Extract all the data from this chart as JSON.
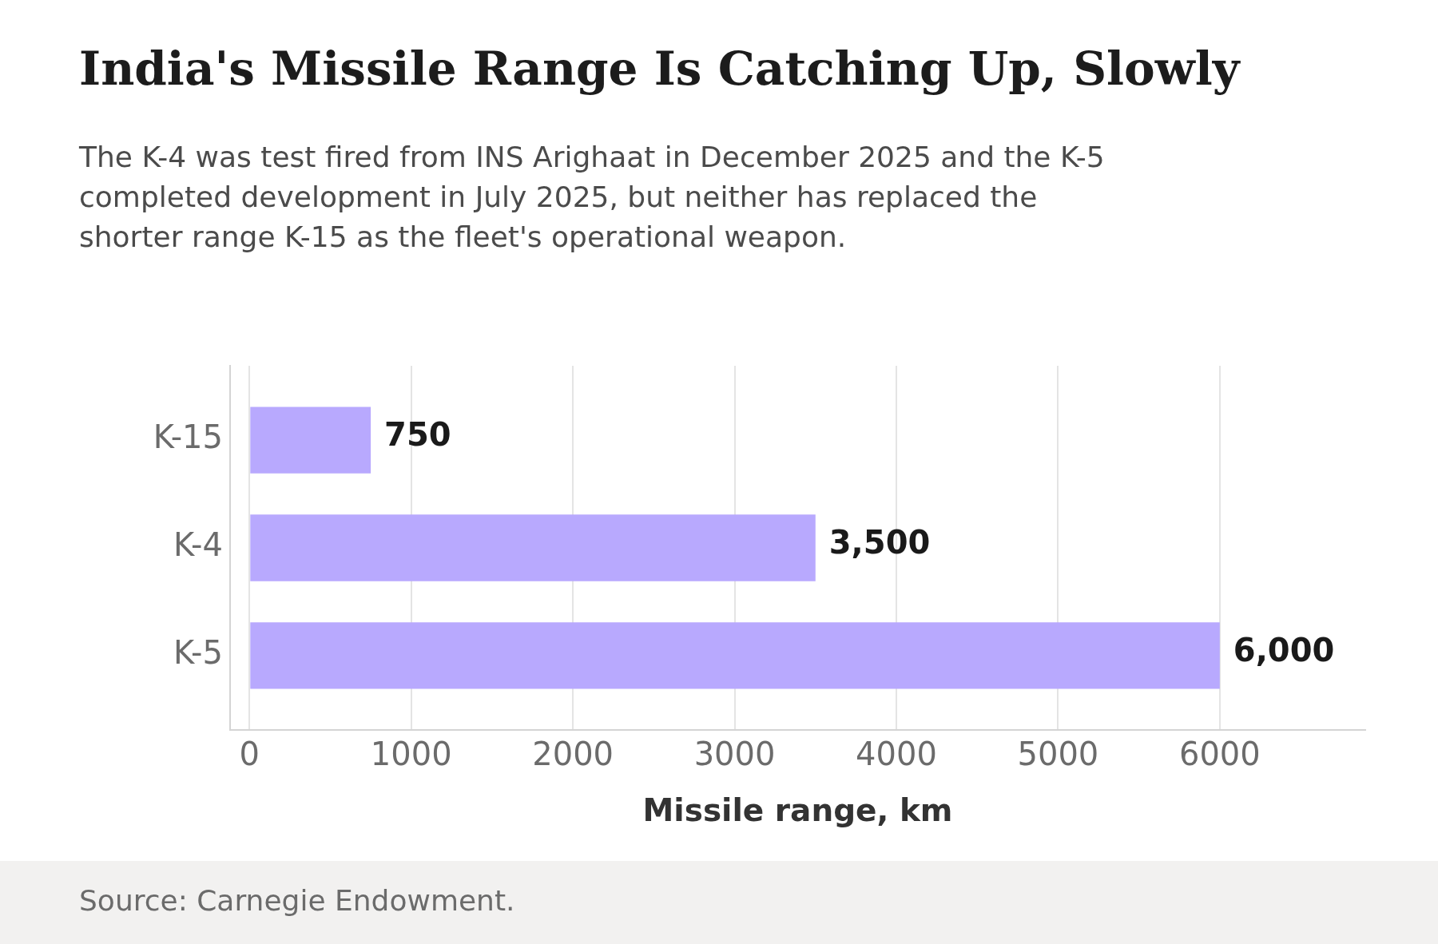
{
  "chart_data": {
    "type": "bar",
    "orientation": "horizontal",
    "title": "India's Missile Range Is Catching Up, Slowly",
    "subtitle": "The K-4 was test fired from INS Arighaat in December 2025 and the K-5 completed development in July 2025, but neither has replaced the shorter range K-15 as the fleet's operational weapon.",
    "xlabel": "Missile range, km",
    "categories": [
      "K-15",
      "K-4",
      "K-5"
    ],
    "values": [
      750,
      3500,
      6000
    ],
    "color": "#b8a9fe",
    "value_labels": [
      "750",
      "3,500",
      "6,000"
    ],
    "xlim": [
      -120,
      6900
    ],
    "xticks": [
      0,
      1000,
      2000,
      3000,
      4000,
      5000,
      6000
    ],
    "grid": "x",
    "annotations": [
      "Source: Carnegie Endowment."
    ]
  }
}
